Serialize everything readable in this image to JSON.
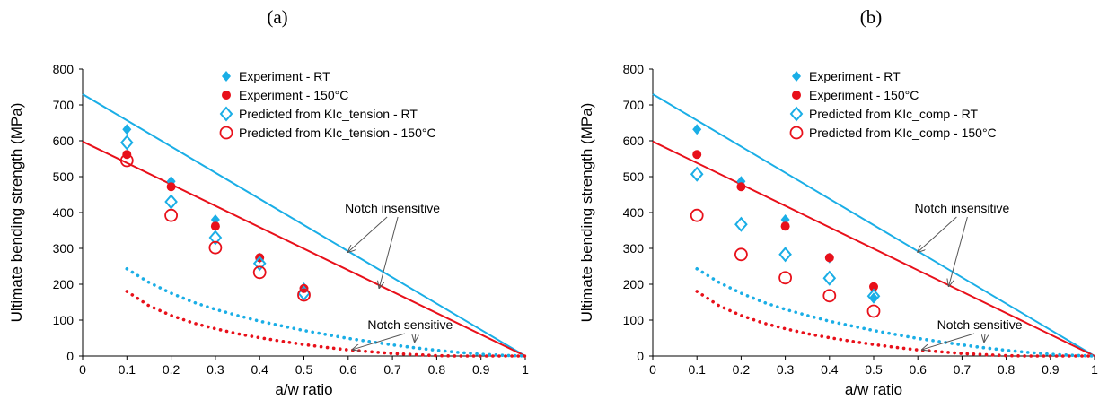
{
  "colors": {
    "rt": "#1aaee6",
    "hot": "#e8101a",
    "axis": "#000000",
    "annot_line": "#555555"
  },
  "chart_data": [
    {
      "type": "scatter",
      "panel_label": "(a)",
      "xlabel": "a/w ratio",
      "ylabel": "Ultimate bending strength (MPa)",
      "xlim": [
        0,
        1
      ],
      "ylim": [
        0,
        800
      ],
      "xticks": [
        "0",
        "0.1",
        "0.2",
        "0.3",
        "0.4",
        "0.5",
        "0.6",
        "0.7",
        "0.8",
        "0.9",
        "1"
      ],
      "yticks": [
        "0",
        "100",
        "200",
        "300",
        "400",
        "500",
        "600",
        "700",
        "800"
      ],
      "grid": false,
      "legend_position": "top-right",
      "series": [
        {
          "name": "Experiment - RT",
          "marker": "diamond-filled",
          "color": "rt",
          "x": [
            0.1,
            0.2,
            0.3,
            0.4,
            0.5
          ],
          "y": [
            632,
            487,
            380,
            273,
            190
          ]
        },
        {
          "name": "Experiment - 150°C",
          "marker": "circle-filled",
          "color": "hot",
          "x": [
            0.1,
            0.2,
            0.3,
            0.4,
            0.5
          ],
          "y": [
            562,
            472,
            362,
            274,
            188
          ]
        },
        {
          "name": "Predicted from KIc_tension - RT",
          "marker": "diamond-open",
          "color": "rt",
          "x": [
            0.1,
            0.2,
            0.3,
            0.4,
            0.5
          ],
          "y": [
            595,
            430,
            330,
            258,
            175
          ]
        },
        {
          "name": "Predicted from KIc_tension - 150°C",
          "marker": "circle-open",
          "color": "hot",
          "x": [
            0.1,
            0.2,
            0.3,
            0.4,
            0.5
          ],
          "y": [
            545,
            392,
            302,
            233,
            170
          ]
        }
      ],
      "lines": [
        {
          "style": "solid",
          "color": "rt",
          "x": [
            0,
            1
          ],
          "y": [
            730,
            0
          ]
        },
        {
          "style": "solid",
          "color": "hot",
          "x": [
            0,
            1
          ],
          "y": [
            598,
            0
          ]
        },
        {
          "style": "dotted",
          "color": "rt",
          "x": [
            0.1,
            0.15,
            0.2,
            0.25,
            0.3,
            0.35,
            0.4,
            0.45,
            0.5,
            0.55,
            0.6,
            0.65,
            0.7,
            0.75,
            0.8,
            0.85,
            0.9,
            0.95,
            1.0
          ],
          "y": [
            243,
            205,
            175,
            150,
            130,
            113,
            97,
            84,
            71,
            60,
            49,
            40,
            31,
            23,
            16,
            10,
            5,
            2,
            0
          ]
        },
        {
          "style": "dotted",
          "color": "hot",
          "x": [
            0.1,
            0.15,
            0.2,
            0.25,
            0.3,
            0.35,
            0.4,
            0.45,
            0.5,
            0.55,
            0.6,
            0.65,
            0.7,
            0.75,
            0.8,
            0.85,
            0.9,
            0.95,
            1.0
          ],
          "y": [
            180,
            140,
            113,
            92,
            76,
            62,
            51,
            41,
            32,
            24,
            17,
            12,
            7,
            4,
            1,
            0,
            0,
            0,
            0
          ]
        }
      ],
      "annotations": [
        {
          "text": "Notch insensitive",
          "x": 0.7,
          "y": 400,
          "arrows_to": [
            [
              0.6,
              290
            ],
            [
              0.67,
              190
            ]
          ]
        },
        {
          "text": "Notch sensitive",
          "x": 0.74,
          "y": 75,
          "arrows_to": [
            [
              0.61,
              18
            ],
            [
              0.75,
              40
            ]
          ]
        }
      ]
    },
    {
      "type": "scatter",
      "panel_label": "(b)",
      "xlabel": "a/w ratio",
      "ylabel": "Ultimate bending strength (MPa)",
      "xlim": [
        0,
        1
      ],
      "ylim": [
        0,
        800
      ],
      "xticks": [
        "0",
        "0.1",
        "0.2",
        "0.3",
        "0.4",
        "0.5",
        "0.6",
        "0.7",
        "0.8",
        "0.9",
        "1"
      ],
      "yticks": [
        "0",
        "100",
        "200",
        "300",
        "400",
        "500",
        "600",
        "700",
        "800"
      ],
      "grid": false,
      "legend_position": "top-right",
      "series": [
        {
          "name": "Experiment - RT",
          "marker": "diamond-filled",
          "color": "rt",
          "x": [
            0.1,
            0.2,
            0.3,
            0.4,
            0.5
          ],
          "y": [
            632,
            487,
            380,
            273,
            162
          ]
        },
        {
          "name": "Experiment - 150°C",
          "marker": "circle-filled",
          "color": "hot",
          "x": [
            0.1,
            0.2,
            0.3,
            0.4,
            0.5
          ],
          "y": [
            562,
            472,
            362,
            274,
            193
          ]
        },
        {
          "name": "Predicted from KIc_comp - RT",
          "marker": "diamond-open",
          "color": "rt",
          "x": [
            0.1,
            0.2,
            0.3,
            0.4,
            0.5
          ],
          "y": [
            507,
            367,
            283,
            217,
            167
          ]
        },
        {
          "name": "Predicted from KIc_comp - 150°C",
          "marker": "circle-open",
          "color": "hot",
          "x": [
            0.1,
            0.2,
            0.3,
            0.4,
            0.5
          ],
          "y": [
            392,
            283,
            218,
            168,
            125
          ]
        }
      ],
      "lines": [
        {
          "style": "solid",
          "color": "rt",
          "x": [
            0,
            1
          ],
          "y": [
            730,
            0
          ]
        },
        {
          "style": "solid",
          "color": "hot",
          "x": [
            0,
            1
          ],
          "y": [
            598,
            0
          ]
        },
        {
          "style": "dotted",
          "color": "rt",
          "x": [
            0.1,
            0.15,
            0.2,
            0.25,
            0.3,
            0.35,
            0.4,
            0.45,
            0.5,
            0.55,
            0.6,
            0.65,
            0.7,
            0.75,
            0.8,
            0.85,
            0.9,
            0.95,
            1.0
          ],
          "y": [
            243,
            205,
            175,
            150,
            130,
            113,
            97,
            84,
            71,
            60,
            49,
            40,
            31,
            23,
            16,
            10,
            5,
            2,
            0
          ]
        },
        {
          "style": "dotted",
          "color": "hot",
          "x": [
            0.1,
            0.15,
            0.2,
            0.25,
            0.3,
            0.35,
            0.4,
            0.45,
            0.5,
            0.55,
            0.6,
            0.65,
            0.7,
            0.75,
            0.8,
            0.85,
            0.9,
            0.95,
            1.0
          ],
          "y": [
            180,
            140,
            113,
            92,
            76,
            62,
            51,
            41,
            32,
            24,
            17,
            12,
            7,
            4,
            1,
            0,
            0,
            0,
            0
          ]
        }
      ],
      "annotations": [
        {
          "text": "Notch insensitive",
          "x": 0.7,
          "y": 400,
          "arrows_to": [
            [
              0.6,
              290
            ],
            [
              0.67,
              195
            ]
          ]
        },
        {
          "text": "Notch sensitive",
          "x": 0.74,
          "y": 75,
          "arrows_to": [
            [
              0.61,
              18
            ],
            [
              0.75,
              40
            ]
          ]
        }
      ]
    }
  ]
}
